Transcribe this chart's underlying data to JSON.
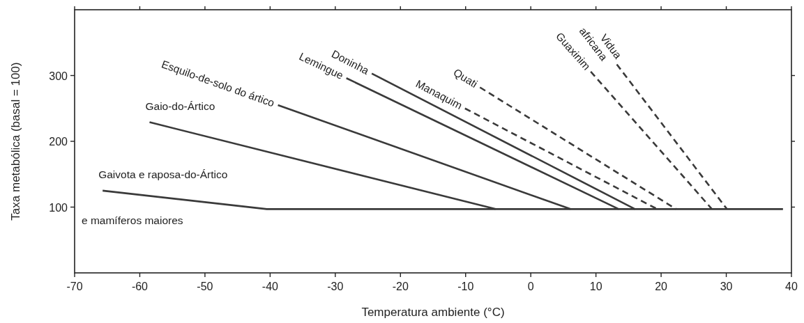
{
  "chart_data": {
    "type": "line",
    "xlabel": "Temperatura ambiente (°C)",
    "ylabel": "Taxa metabólica (basal = 100)",
    "xlim": [
      -70,
      40
    ],
    "xticks": [
      -70,
      -60,
      -50,
      -40,
      -30,
      -20,
      -10,
      0,
      10,
      20,
      30,
      40
    ],
    "ylim": [
      0,
      400
    ],
    "yticks": [
      100,
      200,
      300
    ],
    "grid": false,
    "legend": false,
    "series": [
      {
        "name": "Gaivota e raposa-do-Ártico",
        "color": "#3a3a3a",
        "line_style": "solid",
        "x": [
          -65.7,
          -40.5,
          38.7
        ],
        "values": [
          125,
          97,
          97
        ]
      },
      {
        "name": "Gaio-do-Ártico",
        "color": "#3a3a3a",
        "line_style": "solid",
        "x": [
          -58.5,
          -5.4
        ],
        "values": [
          229,
          97
        ]
      },
      {
        "name": "Esquilo-de-solo do ártico",
        "color": "#3a3a3a",
        "line_style": "solid",
        "x": [
          -38.8,
          6.1
        ],
        "values": [
          255,
          97
        ]
      },
      {
        "name": "Lemingue",
        "color": "#3a3a3a",
        "line_style": "solid",
        "x": [
          -28.3,
          13.5
        ],
        "values": [
          296,
          97
        ]
      },
      {
        "name": "Doninha",
        "color": "#3a3a3a",
        "line_style": "solid",
        "x": [
          -24.4,
          16
        ],
        "values": [
          303,
          97
        ]
      },
      {
        "name": "Manaquim",
        "color": "#3a3a3a",
        "line_style": "dashed",
        "x": [
          -10.1,
          19.4
        ],
        "values": [
          250,
          97
        ]
      },
      {
        "name": "Quati",
        "color": "#3a3a3a",
        "line_style": "dashed",
        "x": [
          -7.8,
          22.3
        ],
        "values": [
          282,
          97
        ]
      },
      {
        "name": "Guaxinim",
        "color": "#3a3a3a",
        "line_style": "dashed",
        "x": [
          9.2,
          27.8
        ],
        "values": [
          306,
          97
        ]
      },
      {
        "name": "Vidua africana",
        "color": "#3a3a3a",
        "line_style": "dashed",
        "x": [
          13.2,
          30.1
        ],
        "values": [
          317,
          97
        ]
      }
    ],
    "annotations": [
      "e mamíferos maiores"
    ]
  }
}
